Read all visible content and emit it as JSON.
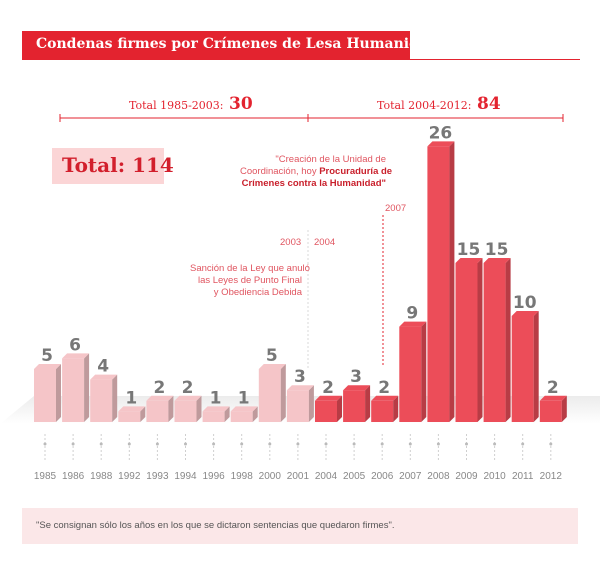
{
  "title": "Condenas firmes por Crímenes de Lesa Humanidad",
  "periods": [
    {
      "label": "Total 1985-2003:",
      "value": "30"
    },
    {
      "label": "Total 2004-2012:",
      "value": "84"
    }
  ],
  "total": "Total: 114",
  "annotations": {
    "year_2003": "2003",
    "year_2004": "2004",
    "year_2007": "2007",
    "ley_line1": "Sanción de la Ley que anuló",
    "ley_line2": "las Leyes de Punto Final",
    "ley_line3": "y Obediencia Debida",
    "unidad_line1": "\"Creación de la Unidad de",
    "unidad_line2": "Coordinación, hoy",
    "unidad_bold2": "Procuraduría de",
    "unidad_bold3": "Crímenes contra la Humanidad\""
  },
  "footnote": "\"Se consignan sólo los años en los que se dictaron sentencias que quedaron firmes\".",
  "colors": {
    "accent": "#e3232f",
    "early_bar": "#f5c5c8",
    "late_bar": "#ec4d59"
  },
  "chart_data": {
    "type": "bar",
    "categories": [
      "1985",
      "1986",
      "1988",
      "1992",
      "1993",
      "1994",
      "1996",
      "1998",
      "2000",
      "2001",
      "2004",
      "2005",
      "2006",
      "2007",
      "2008",
      "2009",
      "2010",
      "2011",
      "2012"
    ],
    "values": [
      5,
      6,
      4,
      1,
      2,
      2,
      1,
      1,
      5,
      3,
      2,
      3,
      2,
      9,
      26,
      15,
      15,
      10,
      2
    ],
    "title": "Condenas firmes por Crímenes de Lesa Humanidad",
    "xlabel": "",
    "ylabel": "",
    "ylim": [
      0,
      26
    ],
    "grid": false,
    "legend": "none"
  }
}
